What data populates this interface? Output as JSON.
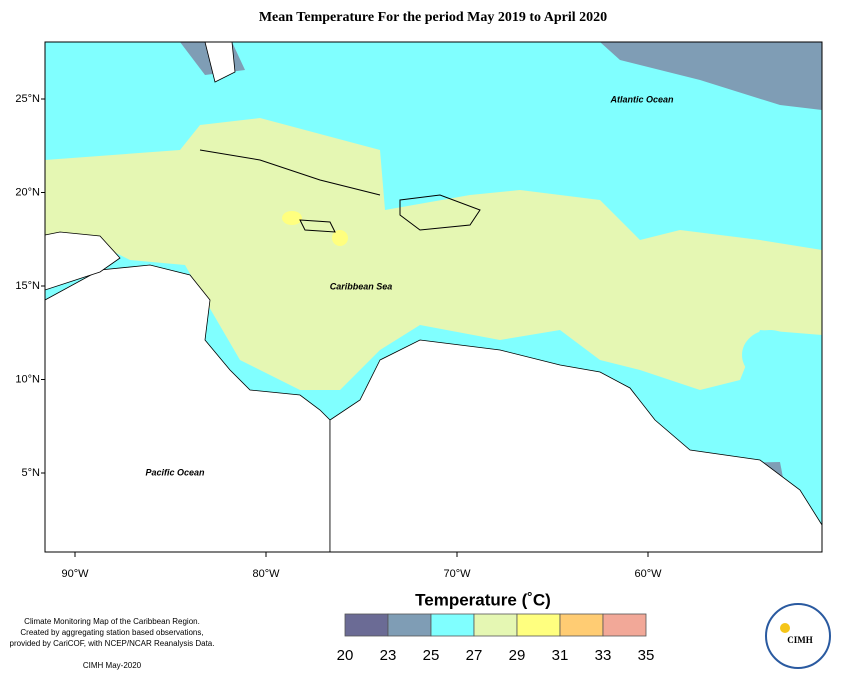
{
  "title": "Mean Temperature For the period May 2019 to April 2020",
  "map": {
    "labels": [
      "Atlantic Ocean",
      "Caribbean Sea",
      "Pacific Ocean"
    ],
    "lat_labels": [
      "25°N",
      "20°N",
      "15°N",
      "10°N",
      "5°N"
    ],
    "lon_labels": [
      "90°W",
      "80°W",
      "70°W",
      "60°W"
    ]
  },
  "legend": {
    "title": "Temperature (˚C)",
    "ticks": [
      20,
      23,
      25,
      27,
      29,
      31,
      33,
      35
    ],
    "colors": [
      "#6b6b95",
      "#7f9db5",
      "#80ffff",
      "#e5f7b3",
      "#ffff7f",
      "#ffcc73",
      "#f2a898"
    ]
  },
  "footer": {
    "lines": [
      "Climate Monitoring Map of the Caribbean Region.",
      "Created by aggregating station based observations,",
      "provided by CariCOF, with NCEP/NCAR Reanalysis Data."
    ],
    "credit": "CIMH May-2020"
  },
  "logo": {
    "text": "CIMH"
  }
}
